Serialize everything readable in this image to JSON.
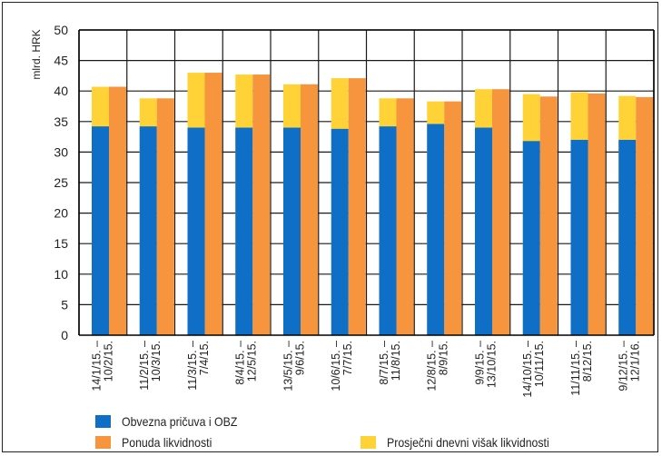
{
  "chart_data": {
    "type": "bar",
    "ylabel": "mlrd. HRK",
    "ylim": [
      0,
      50
    ],
    "yticks": [
      0,
      5,
      10,
      15,
      20,
      25,
      30,
      35,
      40,
      45,
      50
    ],
    "grid": true,
    "legend_position": "bottom",
    "periods": [
      {
        "left": "14/1/15. –",
        "right": "10/2/15.",
        "reserve": 34.2,
        "avg_excess": 40.7,
        "supply": 40.7
      },
      {
        "left": "11/2/15. –",
        "right": "10/3/15.",
        "reserve": 34.2,
        "avg_excess": 38.8,
        "supply": 38.8
      },
      {
        "left": "11/3/15. –",
        "right": "7/4/15.",
        "reserve": 34.0,
        "avg_excess": 43.0,
        "supply": 43.0
      },
      {
        "left": "8/4/15. –",
        "right": "12/5/15.",
        "reserve": 34.0,
        "avg_excess": 42.7,
        "supply": 42.7
      },
      {
        "left": "13/5/15. –",
        "right": "9/6/15.",
        "reserve": 34.0,
        "avg_excess": 41.1,
        "supply": 41.1
      },
      {
        "left": "10/6/15. –",
        "right": "7/7/15.",
        "reserve": 33.8,
        "avg_excess": 42.1,
        "supply": 42.1
      },
      {
        "left": "8/7/15. –",
        "right": "11/8/15.",
        "reserve": 34.2,
        "avg_excess": 38.8,
        "supply": 38.8
      },
      {
        "left": "12/8/15. –",
        "right": "8/9/15.",
        "reserve": 34.6,
        "avg_excess": 38.3,
        "supply": 38.3
      },
      {
        "left": "9/9/15. –",
        "right": "13/10/15.",
        "reserve": 34.0,
        "avg_excess": 40.3,
        "supply": 40.3
      },
      {
        "left": "14/10/15. –",
        "right": "10/11/15.",
        "reserve": 31.8,
        "avg_excess": 39.5,
        "supply": 39.1
      },
      {
        "left": "11/11/15. –",
        "right": "8/12/15.",
        "reserve": 32.0,
        "avg_excess": 39.8,
        "supply": 39.6
      },
      {
        "left": "9/12/15. –",
        "right": "12/1/16.",
        "reserve": 32.0,
        "avg_excess": 39.2,
        "supply": 39.0
      }
    ],
    "series": [
      {
        "key": "reserve",
        "name": "Obvezna pričuva i OBZ",
        "color": "#0f6fc6"
      },
      {
        "key": "supply",
        "name": "Ponuda likvidnosti",
        "color": "#f7943e"
      },
      {
        "key": "avg_excess",
        "name": "Prosječni dnevni višak likvidnosti",
        "color": "#ffd338"
      }
    ]
  },
  "legend": {
    "reserve_label": "Obvezna pričuva i OBZ",
    "supply_label": "Ponuda likvidnosti",
    "excess_label": "Prosječni dnevni višak likvidnosti"
  }
}
